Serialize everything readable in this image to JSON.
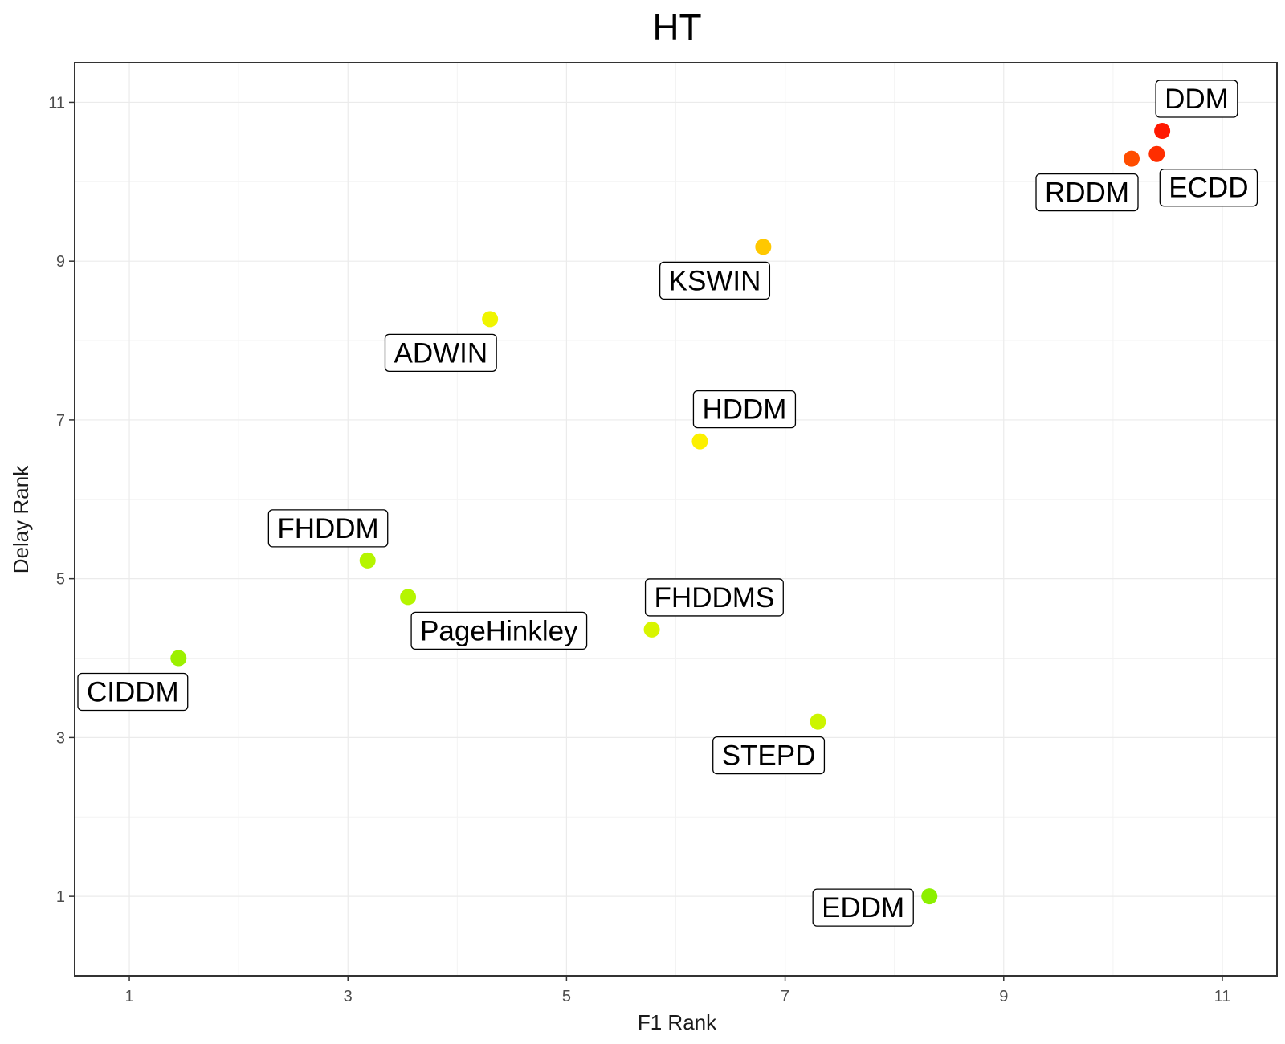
{
  "chart_data": {
    "type": "scatter",
    "title": "HT",
    "xlabel": "F1 Rank",
    "ylabel": "Delay Rank",
    "xlim": [
      0.5,
      11.5
    ],
    "ylim": [
      0.0,
      11.5
    ],
    "xticks": [
      1,
      3,
      5,
      7,
      9,
      11
    ],
    "yticks": [
      1,
      3,
      5,
      7,
      9,
      11
    ],
    "grid": true,
    "legend": "none",
    "points": [
      {
        "label": "DDM",
        "x": 10.45,
        "y": 10.64,
        "color": "#ff1800",
        "label_pos": "above-right"
      },
      {
        "label": "ECDD",
        "x": 10.4,
        "y": 10.35,
        "color": "#ff2e00",
        "label_pos": "below-right"
      },
      {
        "label": "RDDM",
        "x": 10.17,
        "y": 10.29,
        "color": "#ff4d00",
        "label_pos": "below-left"
      },
      {
        "label": "KSWIN",
        "x": 6.8,
        "y": 9.18,
        "color": "#ffc800",
        "label_pos": "below-left"
      },
      {
        "label": "ADWIN",
        "x": 4.3,
        "y": 8.27,
        "color": "#f0f500",
        "label_pos": "below-left"
      },
      {
        "label": "HDDM",
        "x": 6.22,
        "y": 6.73,
        "color": "#fcf000",
        "label_pos": "above-right"
      },
      {
        "label": "FHDDM",
        "x": 3.18,
        "y": 5.23,
        "color": "#b5f500",
        "label_pos": "above-left"
      },
      {
        "label": "PageHinkley",
        "x": 3.55,
        "y": 4.77,
        "color": "#b5f500",
        "label_pos": "below-right"
      },
      {
        "label": "FHDDMS",
        "x": 5.78,
        "y": 4.36,
        "color": "#d8f500",
        "label_pos": "above-right"
      },
      {
        "label": "CIDDM",
        "x": 1.45,
        "y": 4.0,
        "color": "#9cf000",
        "label_pos": "below-left"
      },
      {
        "label": "STEPD",
        "x": 7.3,
        "y": 3.2,
        "color": "#ccf500",
        "label_pos": "below-left"
      },
      {
        "label": "EDDM",
        "x": 8.32,
        "y": 1.0,
        "color": "#8cf000",
        "label_pos": "left"
      }
    ]
  }
}
